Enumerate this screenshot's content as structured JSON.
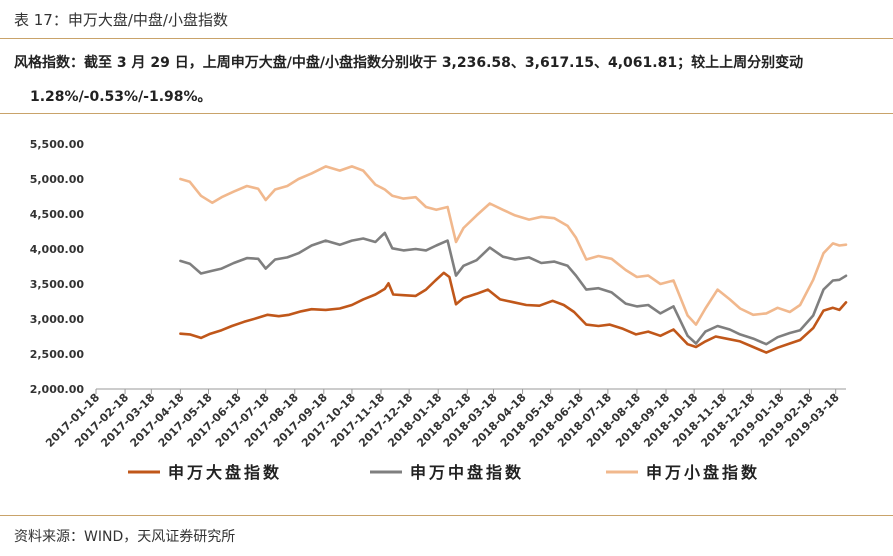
{
  "caption": "表 17：申万大盘/中盘/小盘指数",
  "summary": {
    "line1": "风格指数：截至 3 月 29 日，上周申万大盘/中盘/小盘指数分别收于 3,236.58、3,617.15、4,061.81；较上上周分别变动",
    "line2": "1.28%/-0.53%/-1.98%。"
  },
  "source": "资料来源：WIND，天风证券研究所",
  "colors": {
    "large": "#c0571a",
    "mid": "#7f7f7f",
    "small": "#f1b88d",
    "rule": "#c9a36a"
  },
  "chart_data": {
    "type": "line",
    "title": "",
    "xlabel": "",
    "ylabel": "",
    "ylim": [
      2000,
      5500
    ],
    "yticks": [
      "2,000.00",
      "2,500.00",
      "3,000.00",
      "3,500.00",
      "4,000.00",
      "4,500.00",
      "5,000.00",
      "5,500.00"
    ],
    "xticks": [
      "2017-01-18",
      "2017-02-18",
      "2017-03-18",
      "2017-04-18",
      "2017-05-18",
      "2017-06-18",
      "2017-07-18",
      "2017-08-18",
      "2017-09-18",
      "2017-10-18",
      "2017-11-18",
      "2017-12-18",
      "2018-01-18",
      "2018-02-18",
      "2018-03-18",
      "2018-04-18",
      "2018-05-18",
      "2018-06-18",
      "2018-07-18",
      "2018-08-18",
      "2018-09-18",
      "2018-10-18",
      "2018-11-18",
      "2018-12-18",
      "2019-01-18",
      "2019-02-18",
      "2019-03-18"
    ],
    "xrange": [
      "2017-01-18",
      "2019-03-29"
    ],
    "grid": false,
    "legend": "bottom",
    "series": [
      {
        "name": "申万大盘指数",
        "key": "large",
        "points": [
          [
            "2017-04-18",
            2790
          ],
          [
            "2017-04-28",
            2780
          ],
          [
            "2017-05-10",
            2730
          ],
          [
            "2017-05-20",
            2790
          ],
          [
            "2017-06-01",
            2840
          ],
          [
            "2017-06-12",
            2900
          ],
          [
            "2017-06-25",
            2960
          ],
          [
            "2017-07-08",
            3010
          ],
          [
            "2017-07-20",
            3060
          ],
          [
            "2017-08-01",
            3040
          ],
          [
            "2017-08-12",
            3060
          ],
          [
            "2017-08-25",
            3110
          ],
          [
            "2017-09-05",
            3140
          ],
          [
            "2017-09-20",
            3130
          ],
          [
            "2017-10-05",
            3150
          ],
          [
            "2017-10-18",
            3200
          ],
          [
            "2017-10-30",
            3280
          ],
          [
            "2017-11-12",
            3350
          ],
          [
            "2017-11-22",
            3430
          ],
          [
            "2017-11-26",
            3510
          ],
          [
            "2017-12-01",
            3350
          ],
          [
            "2017-12-12",
            3340
          ],
          [
            "2017-12-25",
            3330
          ],
          [
            "2018-01-05",
            3420
          ],
          [
            "2018-01-15",
            3550
          ],
          [
            "2018-01-24",
            3660
          ],
          [
            "2018-01-30",
            3600
          ],
          [
            "2018-02-06",
            3210
          ],
          [
            "2018-02-14",
            3300
          ],
          [
            "2018-02-28",
            3360
          ],
          [
            "2018-03-12",
            3420
          ],
          [
            "2018-03-25",
            3280
          ],
          [
            "2018-04-08",
            3240
          ],
          [
            "2018-04-22",
            3200
          ],
          [
            "2018-05-06",
            3190
          ],
          [
            "2018-05-20",
            3260
          ],
          [
            "2018-06-01",
            3200
          ],
          [
            "2018-06-12",
            3100
          ],
          [
            "2018-06-25",
            2920
          ],
          [
            "2018-07-08",
            2900
          ],
          [
            "2018-07-20",
            2920
          ],
          [
            "2018-08-03",
            2860
          ],
          [
            "2018-08-17",
            2780
          ],
          [
            "2018-08-30",
            2820
          ],
          [
            "2018-09-12",
            2760
          ],
          [
            "2018-09-26",
            2850
          ],
          [
            "2018-10-11",
            2640
          ],
          [
            "2018-10-20",
            2600
          ],
          [
            "2018-10-30",
            2680
          ],
          [
            "2018-11-10",
            2750
          ],
          [
            "2018-11-25",
            2710
          ],
          [
            "2018-12-06",
            2680
          ],
          [
            "2018-12-20",
            2600
          ],
          [
            "2019-01-03",
            2520
          ],
          [
            "2019-01-15",
            2590
          ],
          [
            "2019-01-28",
            2650
          ],
          [
            "2019-02-08",
            2700
          ],
          [
            "2019-02-22",
            2870
          ],
          [
            "2019-03-05",
            3120
          ],
          [
            "2019-03-15",
            3160
          ],
          [
            "2019-03-22",
            3130
          ],
          [
            "2019-03-29",
            3236.58
          ]
        ]
      },
      {
        "name": "申万中盘指数",
        "key": "mid",
        "points": [
          [
            "2017-04-18",
            3830
          ],
          [
            "2017-04-28",
            3790
          ],
          [
            "2017-05-10",
            3650
          ],
          [
            "2017-05-22",
            3690
          ],
          [
            "2017-06-01",
            3720
          ],
          [
            "2017-06-14",
            3800
          ],
          [
            "2017-06-28",
            3870
          ],
          [
            "2017-07-10",
            3860
          ],
          [
            "2017-07-18",
            3720
          ],
          [
            "2017-07-28",
            3850
          ],
          [
            "2017-08-10",
            3880
          ],
          [
            "2017-08-22",
            3940
          ],
          [
            "2017-09-05",
            4050
          ],
          [
            "2017-09-20",
            4120
          ],
          [
            "2017-10-05",
            4060
          ],
          [
            "2017-10-18",
            4120
          ],
          [
            "2017-10-30",
            4150
          ],
          [
            "2017-11-12",
            4100
          ],
          [
            "2017-11-22",
            4230
          ],
          [
            "2017-11-30",
            4010
          ],
          [
            "2017-12-12",
            3980
          ],
          [
            "2017-12-25",
            4000
          ],
          [
            "2018-01-05",
            3980
          ],
          [
            "2018-01-16",
            4050
          ],
          [
            "2018-01-28",
            4120
          ],
          [
            "2018-02-06",
            3620
          ],
          [
            "2018-02-14",
            3760
          ],
          [
            "2018-02-28",
            3840
          ],
          [
            "2018-03-14",
            4020
          ],
          [
            "2018-03-28",
            3890
          ],
          [
            "2018-04-10",
            3850
          ],
          [
            "2018-04-25",
            3880
          ],
          [
            "2018-05-08",
            3800
          ],
          [
            "2018-05-22",
            3820
          ],
          [
            "2018-06-05",
            3760
          ],
          [
            "2018-06-14",
            3620
          ],
          [
            "2018-06-25",
            3420
          ],
          [
            "2018-07-08",
            3440
          ],
          [
            "2018-07-22",
            3380
          ],
          [
            "2018-08-06",
            3220
          ],
          [
            "2018-08-18",
            3180
          ],
          [
            "2018-08-30",
            3200
          ],
          [
            "2018-09-12",
            3080
          ],
          [
            "2018-09-26",
            3180
          ],
          [
            "2018-10-11",
            2760
          ],
          [
            "2018-10-20",
            2650
          ],
          [
            "2018-10-30",
            2820
          ],
          [
            "2018-11-12",
            2900
          ],
          [
            "2018-11-25",
            2850
          ],
          [
            "2018-12-06",
            2780
          ],
          [
            "2018-12-20",
            2720
          ],
          [
            "2019-01-03",
            2640
          ],
          [
            "2019-01-15",
            2740
          ],
          [
            "2019-01-28",
            2800
          ],
          [
            "2019-02-08",
            2840
          ],
          [
            "2019-02-22",
            3050
          ],
          [
            "2019-03-05",
            3420
          ],
          [
            "2019-03-15",
            3550
          ],
          [
            "2019-03-22",
            3560
          ],
          [
            "2019-03-29",
            3617.15
          ]
        ]
      },
      {
        "name": "申万小盘指数",
        "key": "small",
        "points": [
          [
            "2017-04-18",
            5000
          ],
          [
            "2017-04-28",
            4960
          ],
          [
            "2017-05-10",
            4760
          ],
          [
            "2017-05-22",
            4660
          ],
          [
            "2017-06-01",
            4740
          ],
          [
            "2017-06-14",
            4820
          ],
          [
            "2017-06-28",
            4900
          ],
          [
            "2017-07-10",
            4860
          ],
          [
            "2017-07-18",
            4700
          ],
          [
            "2017-07-28",
            4850
          ],
          [
            "2017-08-10",
            4900
          ],
          [
            "2017-08-22",
            5000
          ],
          [
            "2017-09-05",
            5080
          ],
          [
            "2017-09-20",
            5180
          ],
          [
            "2017-10-05",
            5120
          ],
          [
            "2017-10-18",
            5180
          ],
          [
            "2017-10-30",
            5120
          ],
          [
            "2017-11-12",
            4920
          ],
          [
            "2017-11-22",
            4850
          ],
          [
            "2017-11-30",
            4760
          ],
          [
            "2017-12-12",
            4720
          ],
          [
            "2017-12-25",
            4740
          ],
          [
            "2018-01-05",
            4600
          ],
          [
            "2018-01-16",
            4560
          ],
          [
            "2018-01-28",
            4600
          ],
          [
            "2018-02-06",
            4100
          ],
          [
            "2018-02-14",
            4300
          ],
          [
            "2018-02-28",
            4480
          ],
          [
            "2018-03-14",
            4650
          ],
          [
            "2018-03-28",
            4560
          ],
          [
            "2018-04-10",
            4480
          ],
          [
            "2018-04-25",
            4420
          ],
          [
            "2018-05-08",
            4460
          ],
          [
            "2018-05-22",
            4440
          ],
          [
            "2018-06-05",
            4330
          ],
          [
            "2018-06-14",
            4160
          ],
          [
            "2018-06-25",
            3850
          ],
          [
            "2018-07-08",
            3900
          ],
          [
            "2018-07-22",
            3860
          ],
          [
            "2018-08-06",
            3700
          ],
          [
            "2018-08-18",
            3600
          ],
          [
            "2018-08-30",
            3620
          ],
          [
            "2018-09-12",
            3500
          ],
          [
            "2018-09-26",
            3550
          ],
          [
            "2018-10-11",
            3050
          ],
          [
            "2018-10-20",
            2920
          ],
          [
            "2018-10-30",
            3150
          ],
          [
            "2018-11-12",
            3420
          ],
          [
            "2018-11-25",
            3280
          ],
          [
            "2018-12-06",
            3150
          ],
          [
            "2018-12-20",
            3060
          ],
          [
            "2019-01-03",
            3080
          ],
          [
            "2019-01-15",
            3160
          ],
          [
            "2019-01-28",
            3100
          ],
          [
            "2019-02-08",
            3200
          ],
          [
            "2019-02-22",
            3560
          ],
          [
            "2019-03-05",
            3940
          ],
          [
            "2019-03-15",
            4080
          ],
          [
            "2019-03-22",
            4050
          ],
          [
            "2019-03-29",
            4061.81
          ]
        ]
      }
    ]
  }
}
